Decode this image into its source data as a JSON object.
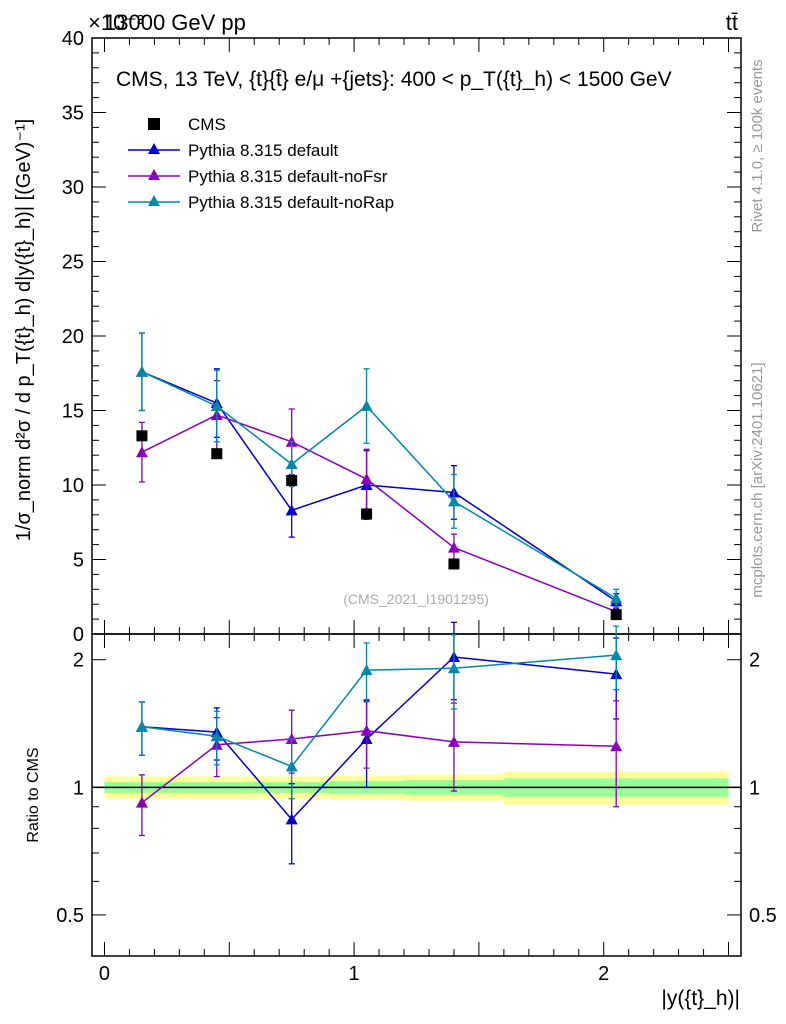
{
  "header": {
    "energy": "13000 GeV pp",
    "process": "tt̄",
    "exponent_label": "×10⁻³"
  },
  "side_labels": {
    "rivet": "Rivet 4.1.0, ≥ 100k events",
    "mcplots": "mcplots.cern.ch [arXiv:2401.10621]"
  },
  "watermark": "(CMS_2021_I1901295)",
  "chart_data": {
    "type": "scatter",
    "title": "CMS, 13 TeV, {t}{t̄} e/μ +{jets}: 400 < p_T({t}_h) < 1500 GeV",
    "xlabel": "|y({t}_h)|",
    "ylabel": "1/σ_norm d²σ / d p_T({t}_h) d|y({t}_h)| [(GeV)⁻¹]",
    "ratio_ylabel": "Ratio to CMS",
    "xlim": [
      -0.05,
      2.55
    ],
    "ylim": [
      0,
      40
    ],
    "ratio_ylim": [
      0.4,
      2.3
    ],
    "xticks": [
      0,
      1,
      2
    ],
    "yticks": [
      5,
      10,
      15,
      20,
      25,
      30,
      35,
      40
    ],
    "ratio_yticks": [
      0.5,
      1,
      2
    ],
    "bin_edges": [
      0,
      0.3,
      0.6,
      0.9,
      1.2,
      1.6,
      2.5
    ],
    "x": [
      0.15,
      0.45,
      0.75,
      1.05,
      1.4,
      2.05
    ],
    "reference": {
      "name": "CMS",
      "values": [
        13.3,
        12.1,
        10.3,
        8.05,
        4.7,
        1.3
      ],
      "band_inner": [
        0.03,
        0.03,
        0.03,
        0.035,
        0.04,
        0.05
      ],
      "band_outer": [
        0.06,
        0.06,
        0.06,
        0.065,
        0.07,
        0.09
      ]
    },
    "series": [
      {
        "name": "Pythia 8.315 default",
        "color": "#0000cc",
        "values": [
          17.6,
          15.5,
          8.3,
          10.0,
          9.5,
          2.2
        ],
        "errors": [
          2.6,
          2.3,
          1.8,
          2.3,
          1.8,
          0.5
        ],
        "ratio": [
          1.39,
          1.35,
          0.84,
          1.3,
          2.03,
          1.85
        ],
        "ratio_errors": [
          0.2,
          0.19,
          0.18,
          0.3,
          0.42,
          0.4
        ]
      },
      {
        "name": "Pythia 8.315 default-noFsr",
        "color": "#8800bb",
        "values": [
          12.2,
          14.7,
          12.9,
          10.4,
          5.8,
          1.5
        ],
        "errors": [
          2.0,
          2.3,
          2.2,
          2.0,
          0.9,
          0.5
        ],
        "ratio": [
          0.92,
          1.26,
          1.3,
          1.36,
          1.28,
          1.25
        ],
        "ratio_errors": [
          0.15,
          0.2,
          0.22,
          0.25,
          0.3,
          0.35
        ]
      },
      {
        "name": "Pythia 8.315 default-noRap",
        "color": "#0088aa",
        "values": [
          17.6,
          15.3,
          11.4,
          15.3,
          8.9,
          2.4
        ],
        "errors": [
          2.6,
          2.4,
          1.5,
          2.5,
          1.8,
          0.6
        ],
        "ratio": [
          1.39,
          1.32,
          1.12,
          1.89,
          1.91,
          2.05
        ],
        "ratio_errors": [
          0.2,
          0.19,
          0.18,
          0.3,
          0.38,
          0.35
        ]
      }
    ]
  }
}
